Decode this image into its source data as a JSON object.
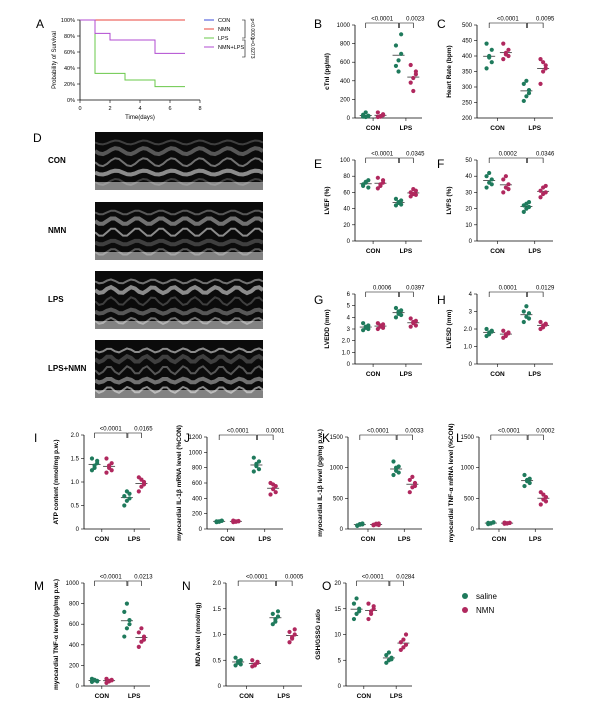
{
  "colors": {
    "saline": "#1f7a5c",
    "nmn": "#b0285e",
    "axis": "#000000"
  },
  "legend": {
    "items": [
      {
        "label": "saline",
        "color": "#1f7a5c"
      },
      {
        "label": "NMN",
        "color": "#b0285e"
      }
    ]
  },
  "echo": {
    "letter": "D",
    "rows": [
      {
        "label": "CON"
      },
      {
        "label": "NMN"
      },
      {
        "label": "LPS"
      },
      {
        "label": "LPS+NMN"
      }
    ]
  },
  "chart_data": [
    {
      "id": "A",
      "type": "line",
      "letter": "A",
      "xlabel": "Time(days)",
      "ylabel": "Probability of Survival",
      "xlim": [
        0,
        8
      ],
      "xticks": [
        0,
        2,
        4,
        6,
        8
      ],
      "ylim": [
        0,
        100
      ],
      "yticks": [
        0,
        20,
        40,
        60,
        80,
        100
      ],
      "ytick_suffix": "%",
      "legend": [
        "CON",
        "NMN",
        "LPS",
        "NMN+LPS"
      ],
      "pvalues": [
        "p<0.0001",
        "p=0.0273"
      ],
      "series": [
        {
          "name": "CON",
          "color": "#3b4bd8",
          "step": [
            [
              0,
              100
            ],
            [
              7,
              100
            ]
          ]
        },
        {
          "name": "NMN",
          "color": "#e8453c",
          "step": [
            [
              0,
              100
            ],
            [
              7,
              100
            ]
          ]
        },
        {
          "name": "LPS",
          "color": "#6ac84a",
          "step": [
            [
              0,
              100
            ],
            [
              1,
              50
            ],
            [
              1,
              33.3
            ],
            [
              3,
              33.3
            ],
            [
              3,
              25
            ],
            [
              5,
              25
            ],
            [
              5,
              16.7
            ],
            [
              7,
              16.7
            ]
          ]
        },
        {
          "name": "NMN+LPS",
          "color": "#b04bd0",
          "step": [
            [
              0,
              100
            ],
            [
              1,
              100
            ],
            [
              1,
              83.3
            ],
            [
              2,
              83.3
            ],
            [
              2,
              75
            ],
            [
              5,
              75
            ],
            [
              5,
              58.3
            ],
            [
              7,
              58.3
            ]
          ]
        }
      ]
    },
    {
      "id": "B",
      "type": "scatter",
      "letter": "B",
      "ylabel": "cTnI (pg/ml)",
      "ylim": [
        0,
        1000
      ],
      "yticks": [
        0,
        200,
        400,
        600,
        800,
        1000
      ],
      "categories": [
        "CON",
        "LPS"
      ],
      "pvalues": [
        "<0.0001",
        "0.0023"
      ],
      "series": [
        {
          "name": "saline",
          "groups": [
            [
              15,
              10,
              20,
              35,
              60,
              25
            ],
            [
              780,
              620,
              690,
              560,
              500,
              900
            ]
          ]
        },
        {
          "name": "NMN",
          "groups": [
            [
              10,
              15,
              40,
              60,
              20,
              30
            ],
            [
              380,
              430,
              500,
              570,
              290,
              470
            ]
          ]
        }
      ]
    },
    {
      "id": "C",
      "type": "scatter",
      "letter": "C",
      "ylabel": "Heart Rate (bpm)",
      "ylim": [
        200,
        500
      ],
      "yticks": [
        200,
        250,
        300,
        350,
        400,
        450,
        500
      ],
      "categories": [
        "CON",
        "LPS"
      ],
      "pvalues": [
        "<0.0001",
        "0.0095"
      ],
      "series": [
        {
          "name": "saline",
          "groups": [
            [
              360,
              395,
              420,
              440,
              400,
              380
            ],
            [
              255,
              270,
              290,
              310,
              320,
              280
            ]
          ]
        },
        {
          "name": "NMN",
          "groups": [
            [
              390,
              405,
              420,
              440,
              410,
              400
            ],
            [
              310,
              350,
              370,
              390,
              380,
              360
            ]
          ]
        }
      ]
    },
    {
      "id": "E",
      "type": "scatter",
      "letter": "E",
      "ylabel": "LVEF (%)",
      "ylim": [
        0,
        100
      ],
      "yticks": [
        0,
        20,
        40,
        60,
        80,
        100
      ],
      "categories": [
        "CON",
        "LPS"
      ],
      "pvalues": [
        "<0.0001",
        "0.0345"
      ],
      "series": [
        {
          "name": "saline",
          "groups": [
            [
              68,
              72,
              75,
              70,
              73,
              66
            ],
            [
              44,
              48,
              50,
              52,
              47,
              45
            ]
          ]
        },
        {
          "name": "NMN",
          "groups": [
            [
              65,
              70,
              75,
              78,
              68,
              72
            ],
            [
              55,
              58,
              62,
              60,
              64,
              57
            ]
          ]
        }
      ]
    },
    {
      "id": "F",
      "type": "scatter",
      "letter": "F",
      "ylabel": "LVFS (%)",
      "ylim": [
        0,
        50
      ],
      "yticks": [
        0,
        10,
        20,
        30,
        40,
        50
      ],
      "categories": [
        "CON",
        "LPS"
      ],
      "pvalues": [
        "0.0002",
        "0.0346"
      ],
      "series": [
        {
          "name": "saline",
          "groups": [
            [
              33,
              36,
              38,
              40,
              42,
              35
            ],
            [
              18,
              20,
              21,
              22,
              23,
              24
            ]
          ]
        },
        {
          "name": "NMN",
          "groups": [
            [
              30,
              33,
              35,
              38,
              40,
              32
            ],
            [
              27,
              29,
              30,
              31,
              33,
              34
            ]
          ]
        }
      ]
    },
    {
      "id": "G",
      "type": "scatter",
      "letter": "G",
      "ylabel": "LVEDD (mm)",
      "ylim": [
        0,
        6
      ],
      "yticks": [
        0,
        1,
        2,
        3,
        4,
        5,
        6
      ],
      "categories": [
        "CON",
        "LPS"
      ],
      "pvalues": [
        "0.0006",
        "0.0397"
      ],
      "series": [
        {
          "name": "saline",
          "groups": [
            [
              2.9,
              3.1,
              3.3,
              3.5,
              3.2,
              3.0
            ],
            [
              4.0,
              4.3,
              4.6,
              4.8,
              4.5,
              4.2
            ]
          ]
        },
        {
          "name": "NMN",
          "groups": [
            [
              3.0,
              3.2,
              3.4,
              3.5,
              3.3,
              3.1
            ],
            [
              3.2,
              3.5,
              3.7,
              3.9,
              3.6,
              3.3
            ]
          ]
        }
      ]
    },
    {
      "id": "H",
      "type": "scatter",
      "letter": "H",
      "ylabel": "LVESD (mm)",
      "ylim": [
        0,
        4
      ],
      "yticks": [
        0,
        1,
        2,
        3,
        4
      ],
      "categories": [
        "CON",
        "LPS"
      ],
      "pvalues": [
        "0.0001",
        "0.0129"
      ],
      "series": [
        {
          "name": "saline",
          "groups": [
            [
              1.6,
              1.8,
              1.9,
              2.0,
              1.7,
              1.85
            ],
            [
              2.4,
              2.7,
              2.9,
              3.0,
              3.3,
              2.6
            ]
          ]
        },
        {
          "name": "NMN",
          "groups": [
            [
              1.5,
              1.7,
              1.8,
              1.9,
              1.6,
              1.75
            ],
            [
              2.0,
              2.2,
              2.3,
              2.4,
              2.1,
              2.25
            ]
          ]
        }
      ]
    },
    {
      "id": "I",
      "type": "scatter",
      "letter": "I",
      "ylabel": "ATP content (nmol/mg p.w.)",
      "ylim": [
        0,
        2.0
      ],
      "yticks": [
        0,
        0.5,
        1.0,
        1.5,
        2.0
      ],
      "categories": [
        "CON",
        "LPS"
      ],
      "pvalues": [
        "<0.0001",
        "0.0165"
      ],
      "series": [
        {
          "name": "saline",
          "groups": [
            [
              1.25,
              1.35,
              1.4,
              1.5,
              1.3,
              1.45
            ],
            [
              0.5,
              0.6,
              0.65,
              0.7,
              0.8,
              0.75
            ]
          ]
        },
        {
          "name": "NMN",
          "groups": [
            [
              1.2,
              1.3,
              1.4,
              1.5,
              1.35,
              1.25
            ],
            [
              0.8,
              0.9,
              1.0,
              1.1,
              1.05,
              0.95
            ]
          ]
        }
      ]
    },
    {
      "id": "J",
      "type": "scatter",
      "letter": "J",
      "ylabel": "myocardial IL-1β mRNA level (%CON)",
      "ylim": [
        0,
        1200
      ],
      "yticks": [
        0,
        200,
        400,
        600,
        800,
        1000,
        1200
      ],
      "categories": [
        "CON",
        "LPS"
      ],
      "pvalues": [
        "<0.0001",
        "0.0001"
      ],
      "series": [
        {
          "name": "saline",
          "groups": [
            [
              90,
              100,
              110,
              100,
              95,
              105
            ],
            [
              750,
              820,
              880,
              930,
              850,
              780
            ]
          ]
        },
        {
          "name": "NMN",
          "groups": [
            [
              90,
              100,
              105,
              110,
              95,
              100
            ],
            [
              450,
              520,
              560,
              600,
              580,
              480
            ]
          ]
        }
      ]
    },
    {
      "id": "K",
      "type": "scatter",
      "letter": "K",
      "ylabel": "myocardial IL-1β level (pg/mg p.w.)",
      "ylim": [
        0,
        1500
      ],
      "yticks": [
        0,
        500,
        1000,
        1500
      ],
      "categories": [
        "CON",
        "LPS"
      ],
      "pvalues": [
        "<0.0001",
        "0.0033"
      ],
      "series": [
        {
          "name": "saline",
          "groups": [
            [
              50,
              70,
              90,
              60,
              80,
              75
            ],
            [
              880,
              950,
              1020,
              1100,
              1000,
              920
            ]
          ]
        },
        {
          "name": "NMN",
          "groups": [
            [
              60,
              75,
              90,
              70,
              85,
              65
            ],
            [
              600,
              680,
              750,
              800,
              850,
              700
            ]
          ]
        }
      ]
    },
    {
      "id": "L",
      "type": "scatter",
      "letter": "L",
      "ylabel": "myocardial TNF-α mRNA level (%CON)",
      "ylim": [
        0,
        1500
      ],
      "yticks": [
        0,
        500,
        1000,
        1500
      ],
      "categories": [
        "CON",
        "LPS"
      ],
      "pvalues": [
        "<0.0001",
        "0.0002"
      ],
      "series": [
        {
          "name": "saline",
          "groups": [
            [
              80,
              95,
              105,
              100,
              90,
              110
            ],
            [
              700,
              780,
              820,
              880,
              800,
              750
            ]
          ]
        },
        {
          "name": "NMN",
          "groups": [
            [
              85,
              95,
              100,
              105,
              90,
              100
            ],
            [
              400,
              480,
              520,
              600,
              560,
              450
            ]
          ]
        }
      ]
    },
    {
      "id": "M",
      "type": "scatter",
      "letter": "M",
      "ylabel": "myocardial TNF-α level (pg/mg p.w.)",
      "ylim": [
        0,
        1000
      ],
      "yticks": [
        0,
        200,
        400,
        600,
        800,
        1000
      ],
      "categories": [
        "CON",
        "LPS"
      ],
      "pvalues": [
        "<0.0001",
        "0.0213"
      ],
      "series": [
        {
          "name": "saline",
          "groups": [
            [
              40,
              60,
              50,
              70,
              55,
              45
            ],
            [
              480,
              560,
              640,
              720,
              800,
              600
            ]
          ]
        },
        {
          "name": "NMN",
          "groups": [
            [
              30,
              50,
              60,
              70,
              45,
              55
            ],
            [
              380,
              430,
              480,
              520,
              560,
              450
            ]
          ]
        }
      ]
    },
    {
      "id": "N",
      "type": "scatter",
      "letter": "N",
      "ylabel": "MDA level (nmol/mg)",
      "ylim": [
        0,
        2.0
      ],
      "yticks": [
        0,
        0.5,
        1.0,
        1.5,
        2.0
      ],
      "categories": [
        "CON",
        "LPS"
      ],
      "pvalues": [
        "<0.0001",
        "0.0005"
      ],
      "series": [
        {
          "name": "saline",
          "groups": [
            [
              0.4,
              0.45,
              0.5,
              0.55,
              0.48,
              0.42
            ],
            [
              1.2,
              1.3,
              1.35,
              1.4,
              1.25,
              1.45
            ]
          ]
        },
        {
          "name": "NMN",
          "groups": [
            [
              0.38,
              0.42,
              0.45,
              0.5,
              0.4,
              0.47
            ],
            [
              0.85,
              0.92,
              1.0,
              1.05,
              0.95,
              1.1
            ]
          ]
        }
      ]
    },
    {
      "id": "O",
      "type": "scatter",
      "letter": "O",
      "ylabel": "GSH/GSSG ratio",
      "ylim": [
        0,
        20
      ],
      "yticks": [
        0,
        5,
        10,
        15,
        20
      ],
      "categories": [
        "CON",
        "LPS"
      ],
      "pvalues": [
        "<0.0001",
        "0.0284"
      ],
      "series": [
        {
          "name": "saline",
          "groups": [
            [
              13,
              14,
              15,
              16,
              17,
              14.5
            ],
            [
              4.5,
              5,
              5.5,
              6,
              6.5,
              5.2
            ]
          ]
        },
        {
          "name": "NMN",
          "groups": [
            [
              13,
              14,
              15,
              16,
              14.5,
              15.5
            ],
            [
              7,
              7.5,
              8,
              8.5,
              9,
              10
            ]
          ]
        }
      ]
    }
  ]
}
